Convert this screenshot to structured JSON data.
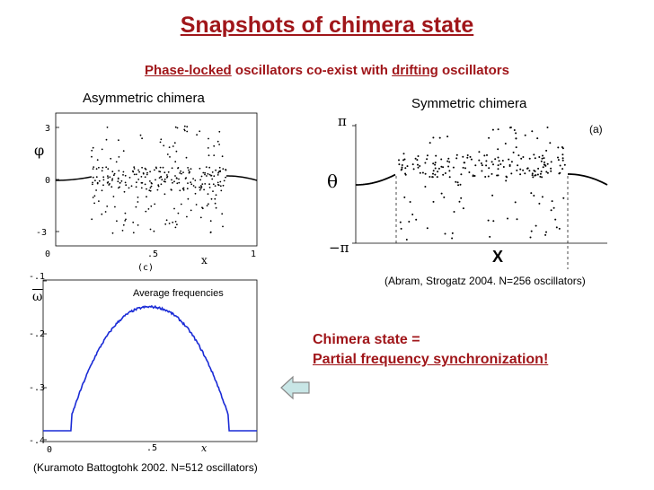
{
  "title": "Snapshots of chimera state",
  "subtitle": {
    "phase_locked": "Phase-locked",
    "mid": " oscillators co-exist with ",
    "drifting": "drifting",
    "end": " oscillators"
  },
  "left_top_plot": {
    "heading": "Asymmetric chimera",
    "ylabel": "φ",
    "yticks": [
      "3",
      "0",
      "-3"
    ],
    "xticks": [
      "0",
      ".5",
      "1"
    ],
    "xlabel": "x",
    "panel": "(c)"
  },
  "right_plot": {
    "heading": "Symmetric chimera",
    "ylabel": "θ",
    "ytick_top": "π",
    "ytick_bottom": "−π",
    "xlabel": "X",
    "panel": "(a)",
    "caption": "(Abram, Strogatz 2004. N=256 oscillators)"
  },
  "left_bottom_plot": {
    "ylabel": "ω",
    "yticks": [
      "-.1",
      "-.2",
      "-.3",
      "-.4"
    ],
    "xticks": [
      "0",
      ".5",
      "x"
    ],
    "legend": "Average frequencies",
    "caption": "(Kuramoto Battogtohk 2002.  N=512 oscillators)"
  },
  "conclusion": {
    "line1": "Chimera state =",
    "line2": "Partial frequency synchronization!"
  },
  "colors": {
    "title": "#a0161a",
    "curve": "#1a2bd6",
    "arrow_fill": "#c8e6e6",
    "arrow_stroke": "#888888"
  },
  "chart_data": [
    {
      "type": "scatter",
      "title": "Asymmetric chimera",
      "xlabel": "x",
      "ylabel": "φ",
      "xlim": [
        0,
        1
      ],
      "ylim": [
        -3.2,
        3.2
      ],
      "xticks": [
        0,
        0.5,
        1
      ],
      "yticks": [
        3,
        0,
        -3
      ],
      "locked_regions": [
        [
          0,
          0.15
        ],
        [
          0.9,
          1.0
        ]
      ]
    },
    {
      "type": "scatter",
      "title": "Symmetric chimera",
      "xlabel": "X",
      "ylabel": "θ",
      "ylim": [
        -3.1416,
        3.1416
      ],
      "ytick_labels": [
        "π",
        "−π"
      ],
      "locked_regions": [
        [
          -1,
          -0.55
        ],
        [
          0.55,
          1
        ]
      ]
    },
    {
      "type": "line",
      "title": "Average frequencies",
      "xlabel": "x",
      "ylabel": "ω",
      "xlim": [
        0,
        1
      ],
      "ylim": [
        -0.4,
        -0.1
      ],
      "yticks": [
        -0.1,
        -0.2,
        -0.3,
        -0.4
      ],
      "x": [
        0.0,
        0.13,
        0.135,
        0.2,
        0.3,
        0.4,
        0.5,
        0.6,
        0.7,
        0.8,
        0.865,
        0.87,
        1.0
      ],
      "y": [
        -0.38,
        -0.38,
        -0.35,
        -0.25,
        -0.19,
        -0.16,
        -0.15,
        -0.16,
        -0.19,
        -0.25,
        -0.35,
        -0.38,
        -0.38
      ]
    }
  ]
}
